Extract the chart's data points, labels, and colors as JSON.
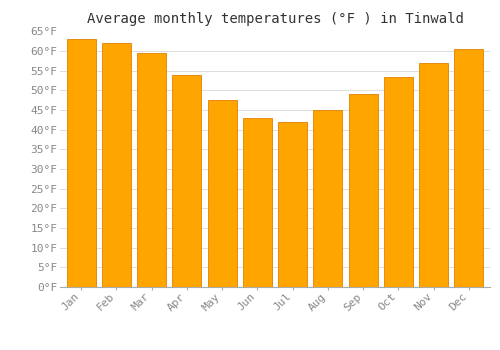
{
  "title": "Average monthly temperatures (°F ) in Tinwald",
  "months": [
    "Jan",
    "Feb",
    "Mar",
    "Apr",
    "May",
    "Jun",
    "Jul",
    "Aug",
    "Sep",
    "Oct",
    "Nov",
    "Dec"
  ],
  "values": [
    63,
    62,
    59.5,
    54,
    47.5,
    43,
    42,
    45,
    49,
    53.5,
    57,
    60.5
  ],
  "bar_color": "#FFA500",
  "bar_edge_color": "#E08000",
  "ylim": [
    0,
    65
  ],
  "yticks": [
    0,
    5,
    10,
    15,
    20,
    25,
    30,
    35,
    40,
    45,
    50,
    55,
    60,
    65
  ],
  "ytick_labels": [
    "0°F",
    "5°F",
    "10°F",
    "15°F",
    "20°F",
    "25°F",
    "30°F",
    "35°F",
    "40°F",
    "45°F",
    "50°F",
    "55°F",
    "60°F",
    "65°F"
  ],
  "title_fontsize": 10,
  "tick_fontsize": 8,
  "grid_color": "#dddddd",
  "background_color": "#ffffff",
  "font_family": "monospace",
  "bar_width": 0.82
}
